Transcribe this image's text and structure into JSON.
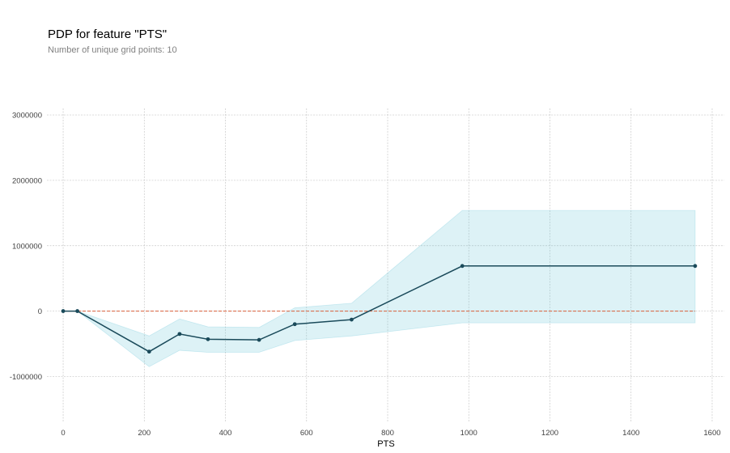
{
  "chart_data": {
    "type": "line",
    "title": "PDP for feature \"PTS\"",
    "subtitle": "Number of unique grid points: 10",
    "xlabel": "PTS",
    "ylabel": "",
    "xlim": [
      -40,
      1630
    ],
    "ylim": [
      -1700000,
      3100000
    ],
    "x_ticks": [
      0,
      200,
      400,
      600,
      800,
      1000,
      1200,
      1400,
      1600
    ],
    "y_ticks": [
      -1000000,
      0,
      1000000,
      2000000,
      3000000
    ],
    "grid": true,
    "series": [
      {
        "name": "PDP",
        "color": "#1a4a5a",
        "x": [
          0,
          35,
          212,
          287,
          357,
          483,
          571,
          711,
          984,
          1558
        ],
        "values": [
          0,
          0,
          -620000,
          -350000,
          -430000,
          -440000,
          -200000,
          -130000,
          690000,
          690000
        ]
      }
    ],
    "confidence_band": {
      "color": "#66c2d7",
      "x": [
        0,
        35,
        212,
        287,
        357,
        483,
        571,
        711,
        984,
        1558
      ],
      "upper": [
        0,
        0,
        -380000,
        -120000,
        -240000,
        -250000,
        50000,
        120000,
        1540000,
        1540000
      ],
      "lower": [
        0,
        0,
        -850000,
        -600000,
        -630000,
        -630000,
        -450000,
        -380000,
        -180000,
        -180000
      ]
    },
    "baseline": {
      "value": 0,
      "color": "#d95f3b"
    }
  }
}
